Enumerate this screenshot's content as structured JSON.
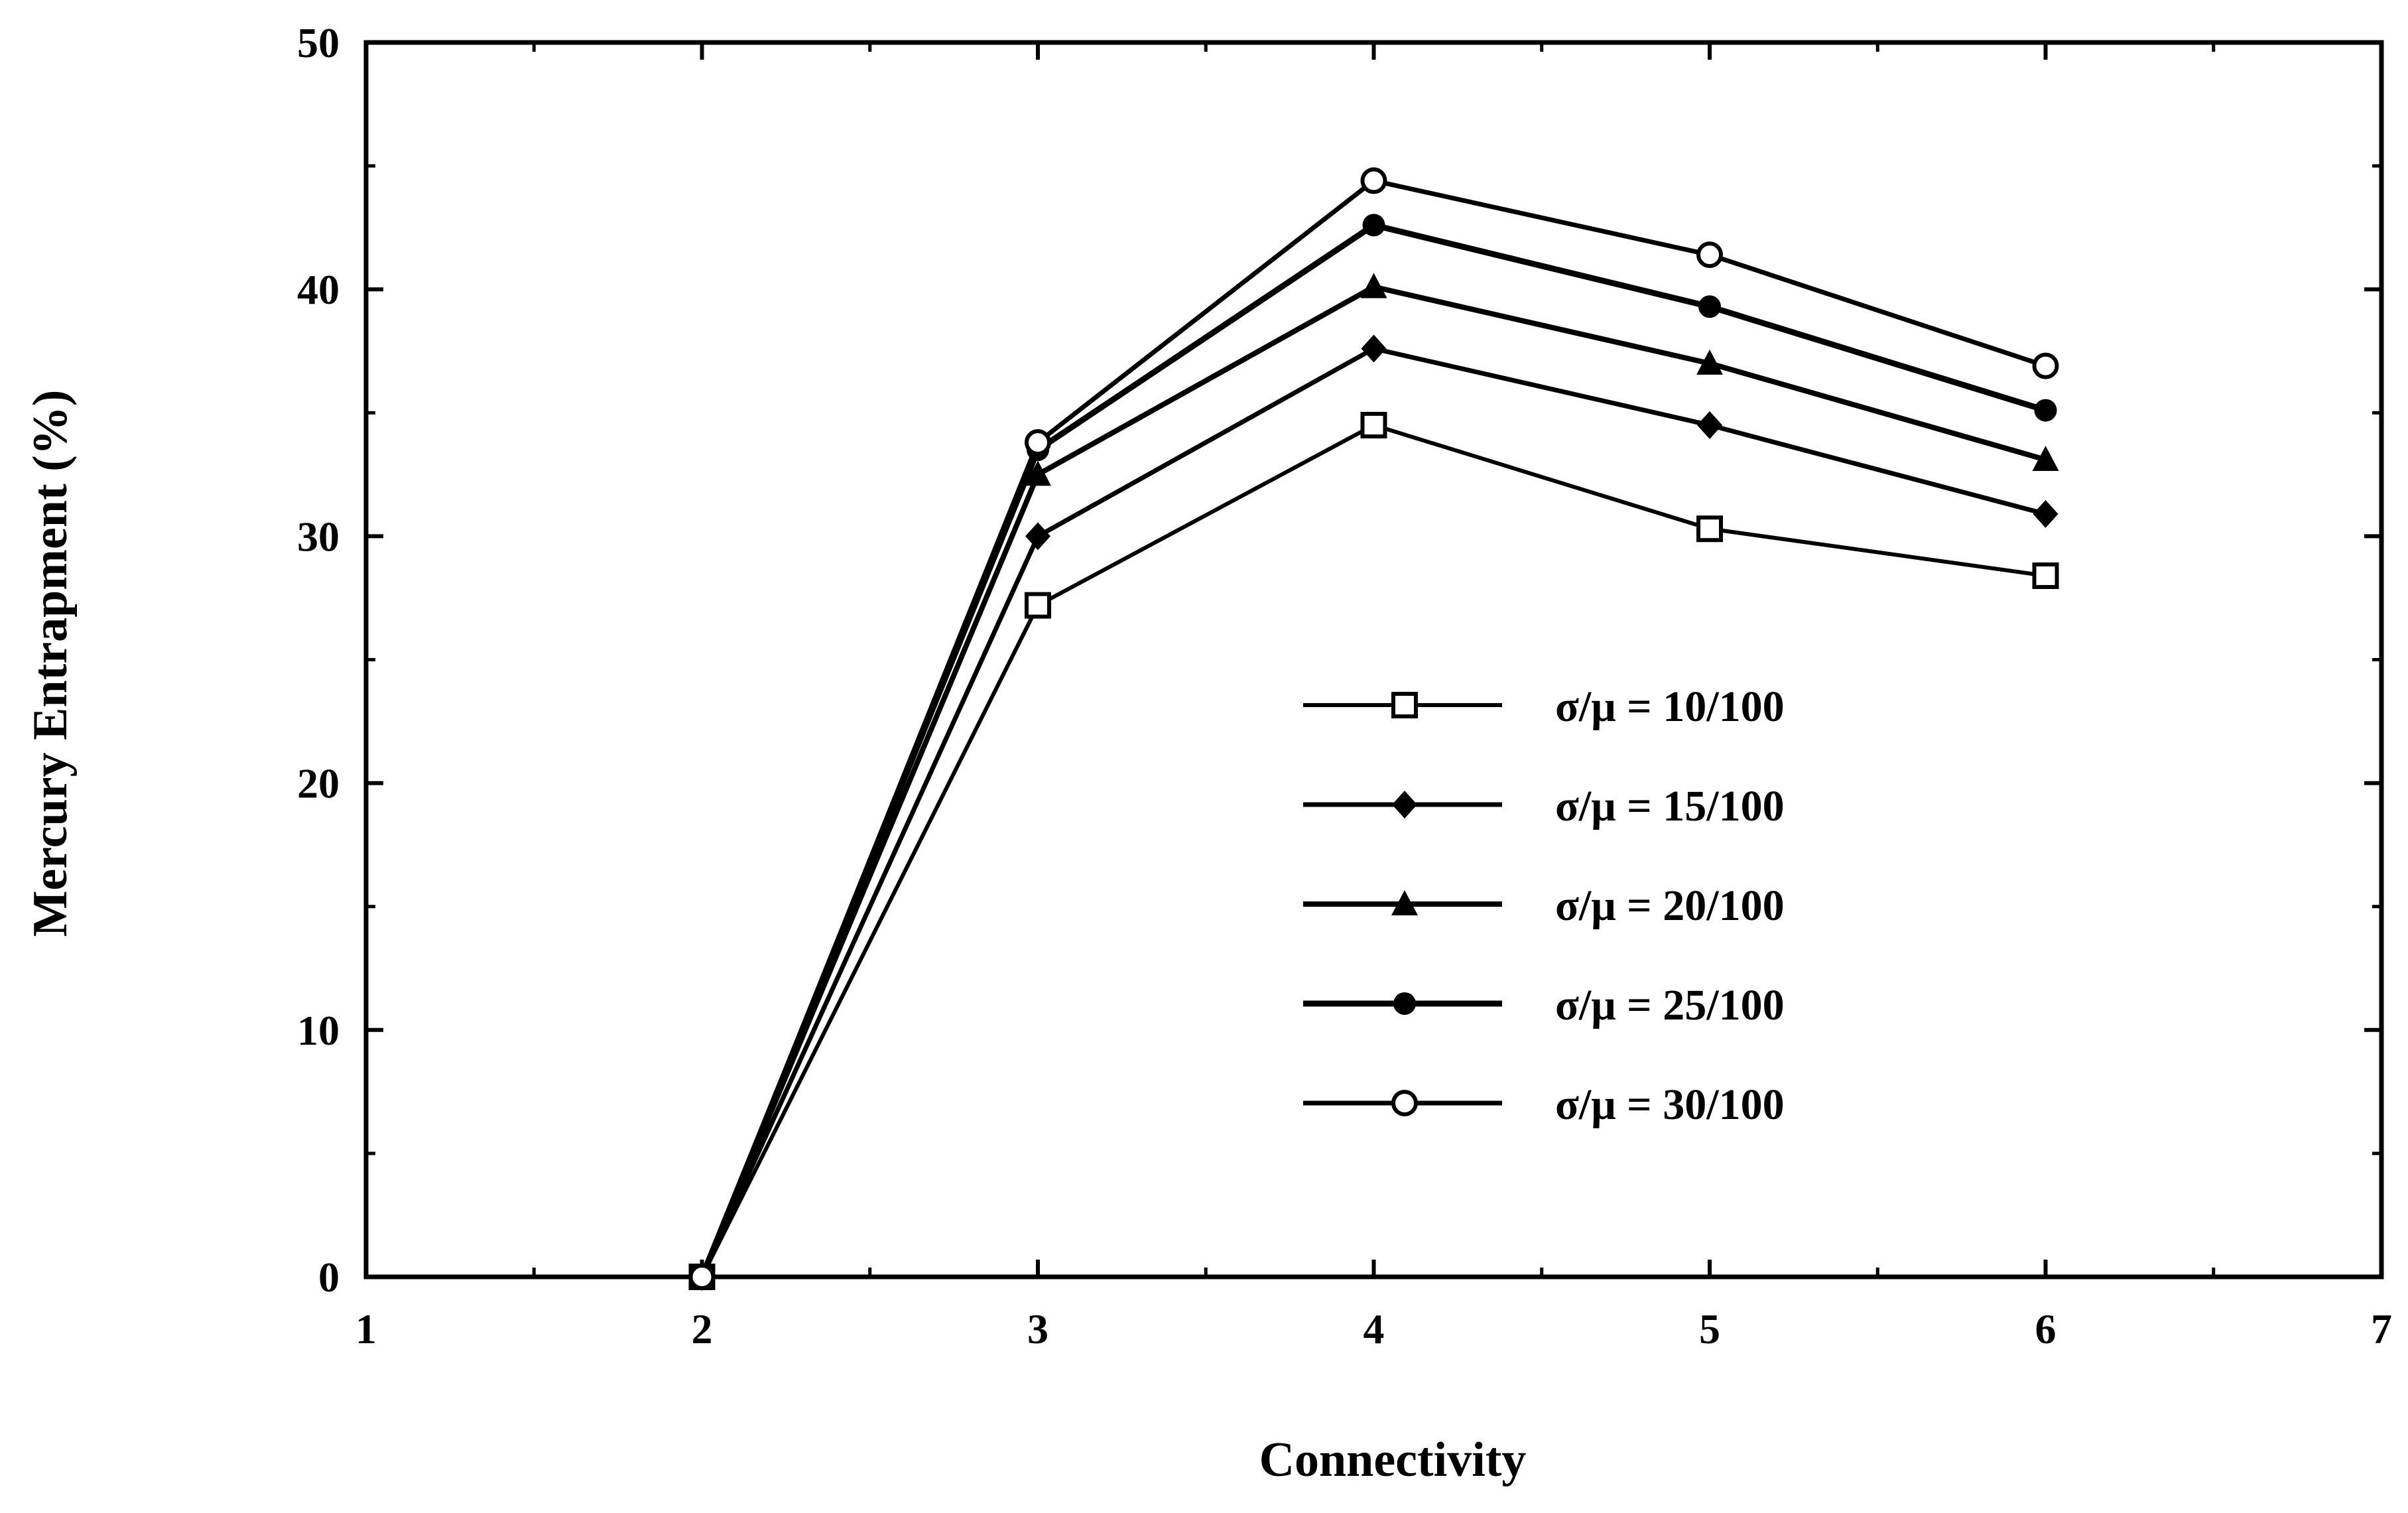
{
  "chart_data": {
    "type": "line",
    "xlabel": "Connectivity",
    "ylabel": "Mercury Entrapment (%)",
    "xlim": [
      1,
      7
    ],
    "ylim": [
      0,
      50
    ],
    "x_ticks": [
      "1",
      "2",
      "3",
      "4",
      "5",
      "6",
      "7"
    ],
    "y_ticks": [
      "0",
      "10",
      "20",
      "30",
      "40",
      "50"
    ],
    "grid": false,
    "legend_position": "center-right",
    "x": [
      2,
      3,
      4,
      5,
      6
    ],
    "series": [
      {
        "name": "σ/μ = 10/100",
        "marker": "square-open",
        "values": [
          0,
          27.2,
          34.5,
          30.3,
          28.4
        ]
      },
      {
        "name": "σ/μ = 15/100",
        "marker": "diamond-filled",
        "values": [
          0,
          30.0,
          37.6,
          34.5,
          30.9
        ]
      },
      {
        "name": "σ/μ = 20/100",
        "marker": "triangle-filled",
        "values": [
          0,
          32.5,
          40.1,
          37.0,
          33.1
        ]
      },
      {
        "name": "σ/μ = 25/100",
        "marker": "circle-filled",
        "values": [
          0,
          33.5,
          42.6,
          39.3,
          35.1
        ]
      },
      {
        "name": "σ/μ = 30/100",
        "marker": "circle-open",
        "values": [
          0,
          33.8,
          44.4,
          41.4,
          36.9
        ]
      }
    ],
    "colors": {
      "line": "#000000",
      "background": "#ffffff"
    }
  }
}
